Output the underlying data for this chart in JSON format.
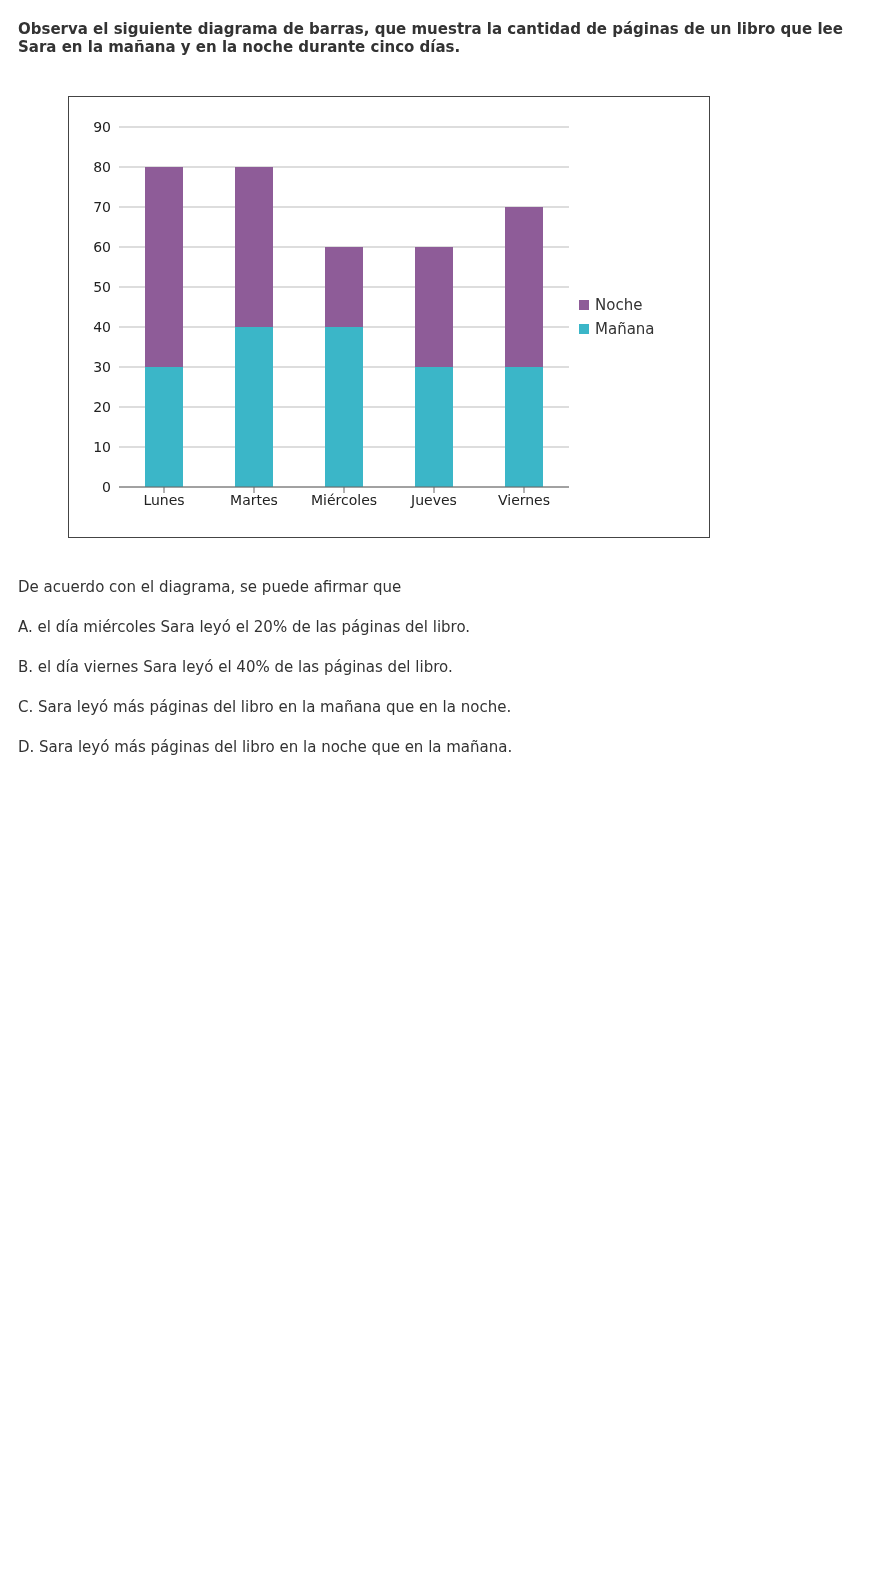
{
  "chart_data": {
    "type": "bar",
    "title": "Observa el siguiente diagrama de barras, que muestra la cantidad de páginas de un libro que lee Sara en la mañana y en la noche durante cinco días.",
    "categories": [
      "Lunes",
      "Martes",
      "Miércoles",
      "Jueves",
      "Viernes"
    ],
    "series": [
      {
        "name": "Mañana",
        "color": "#3bb6c8",
        "values": [
          30,
          40,
          40,
          30,
          30
        ]
      },
      {
        "name": "Noche",
        "color": "#8e5c98",
        "values": [
          50,
          40,
          20,
          30,
          40
        ]
      }
    ],
    "stacked": true,
    "ylim": [
      0,
      90
    ],
    "yticks": [
      0,
      10,
      20,
      30,
      40,
      50,
      60,
      70,
      80,
      90
    ],
    "grid": "y",
    "legend": "right",
    "annotations": [
      "De acuerdo con el diagrama, se puede afirmar que",
      "A. el día miércoles Sara leyó el 20% de las páginas del libro.",
      "B. el día viernes Sara leyó el 40% de las páginas del libro.",
      "C. Sara leyó más páginas del libro en la mañana que en la noche.",
      "D. Sara leyó más páginas del libro en la noche que en la mañana."
    ]
  }
}
